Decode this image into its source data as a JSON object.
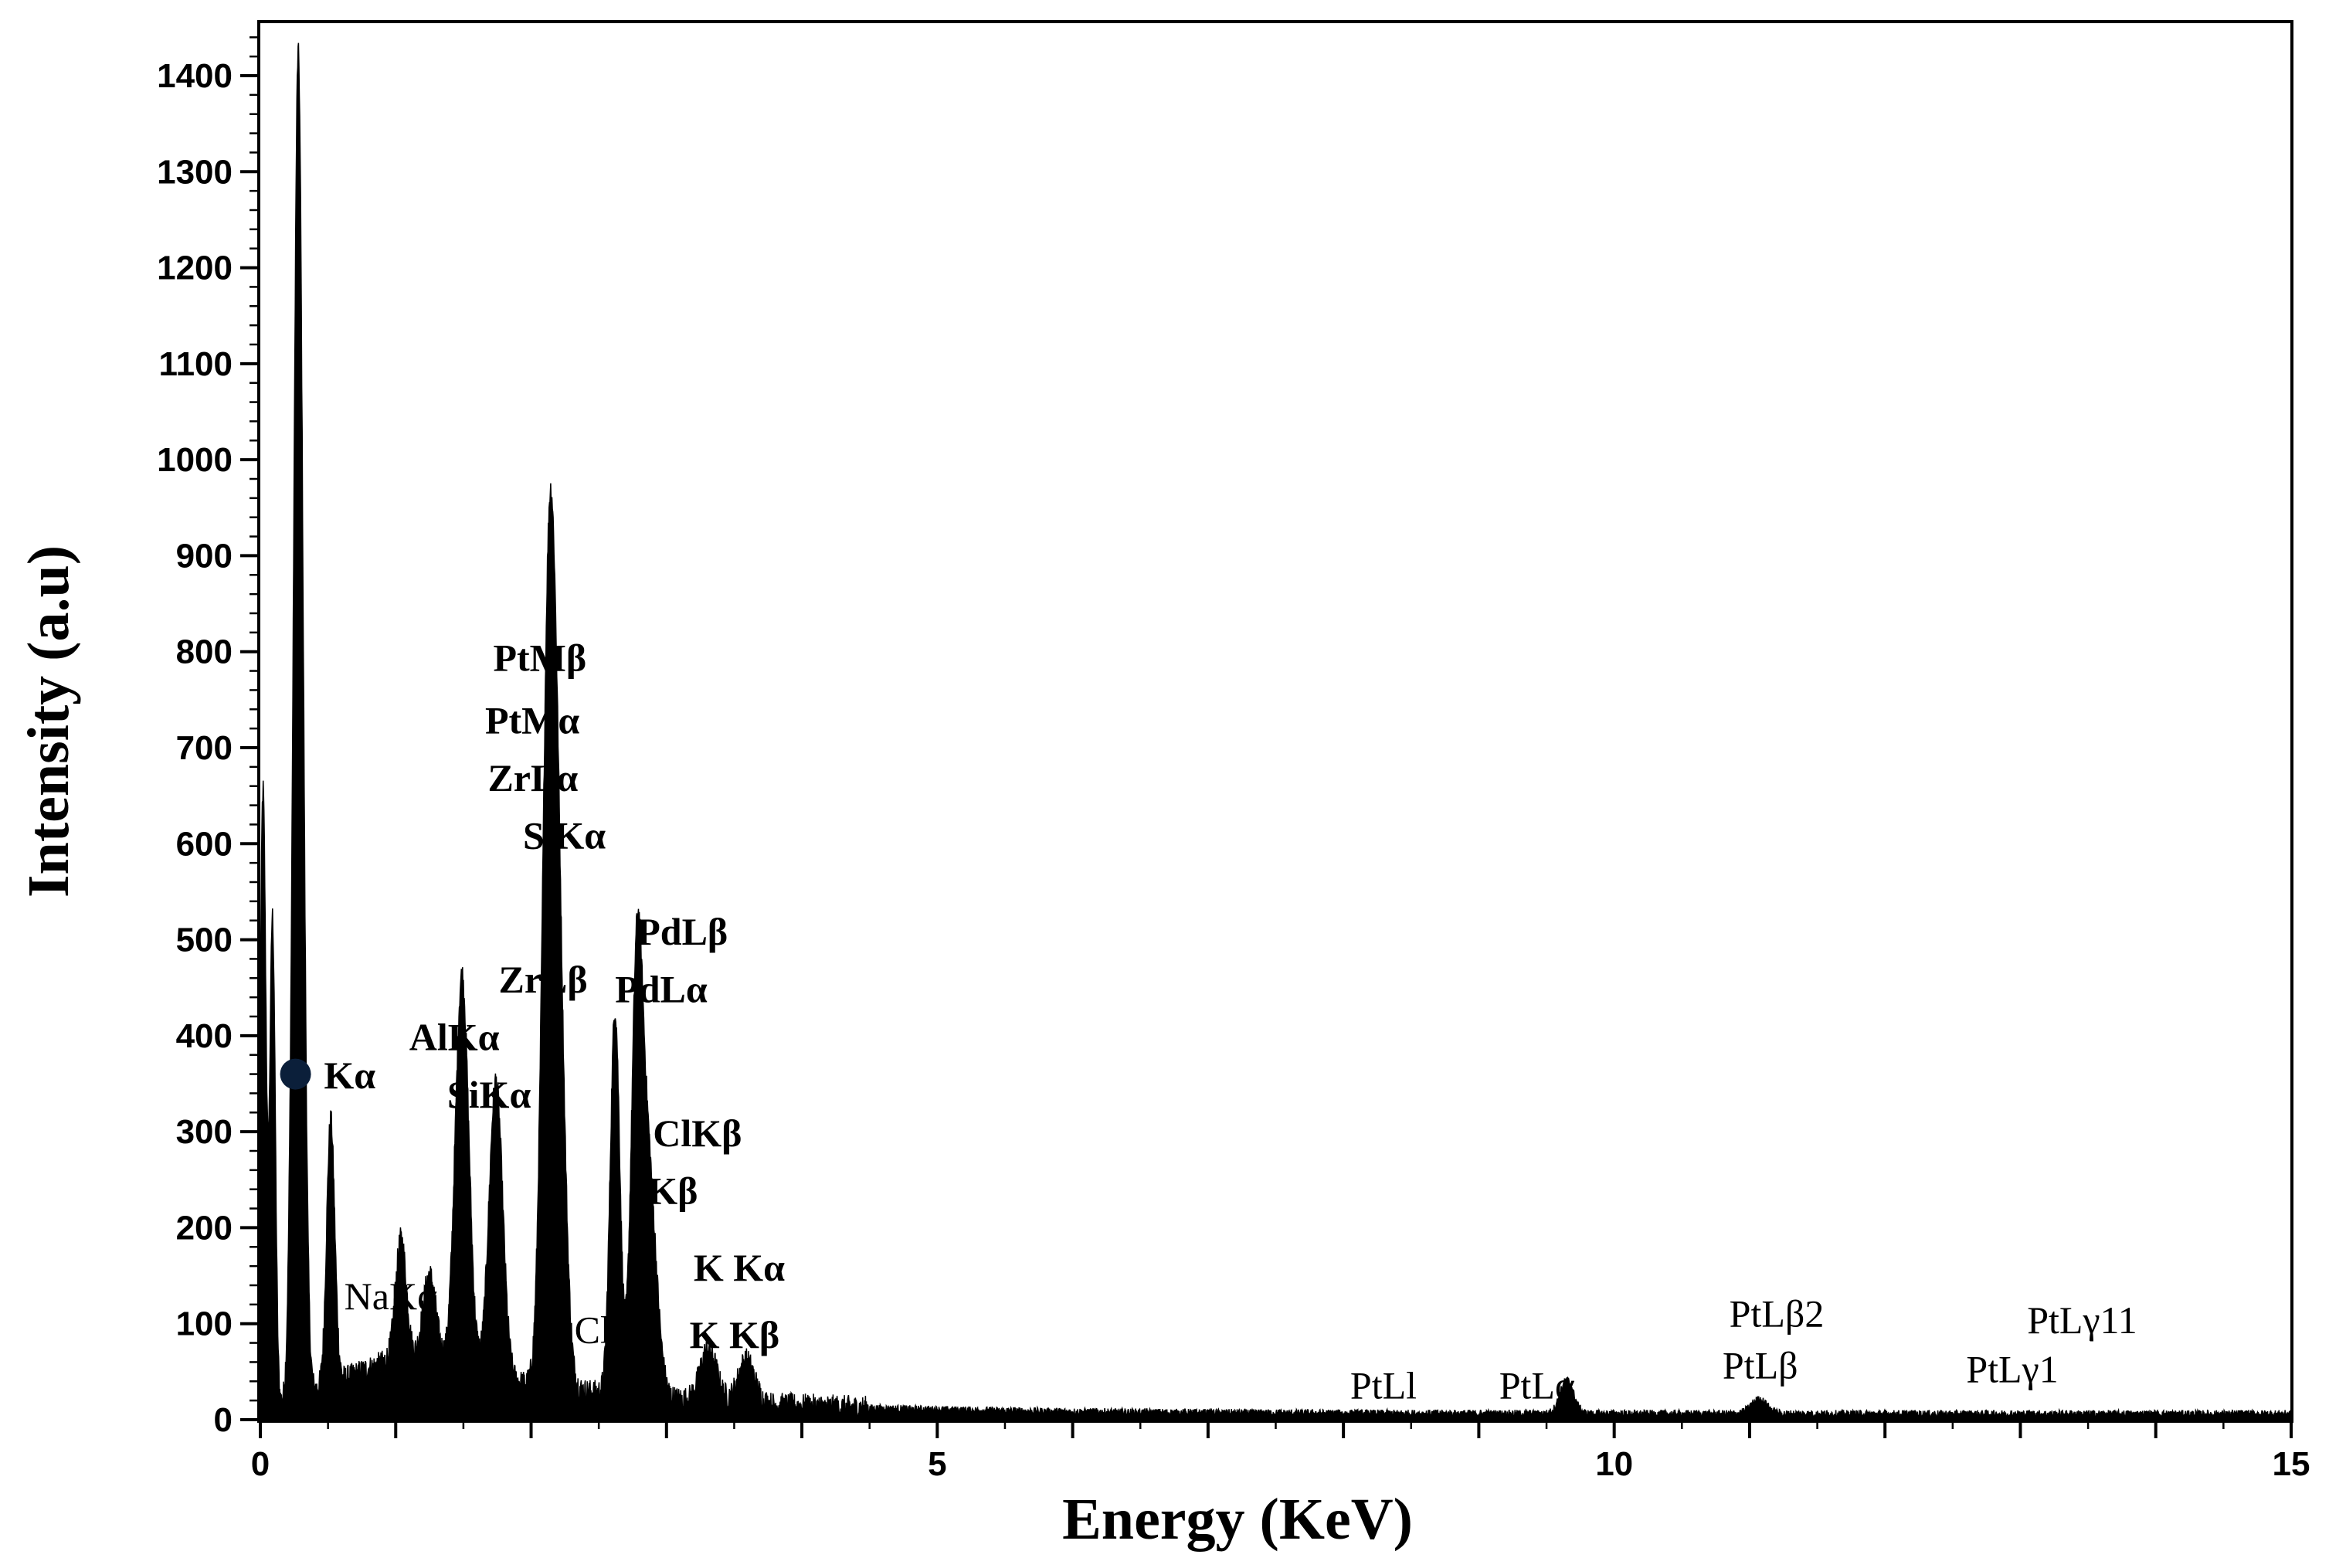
{
  "chart_data": {
    "type": "area",
    "title": "",
    "xlabel": "Energy (KeV)",
    "ylabel": "Intensity (a.u)",
    "xlim": [
      0,
      15
    ],
    "ylim": [
      0,
      1450
    ],
    "x_ticks": [
      0,
      5,
      10,
      15
    ],
    "y_ticks": [
      0,
      100,
      200,
      300,
      400,
      500,
      600,
      700,
      800,
      900,
      1000,
      1100,
      1200,
      1300,
      1400
    ],
    "grid": false,
    "legend": "none",
    "colors": {
      "fill": "#000000",
      "marker": "#0b1f3a"
    },
    "background": {
      "start": 0.1,
      "end": 15.0,
      "peak_at": 1.0,
      "peak_value": 65,
      "tail_value": 6
    },
    "peaks": [
      {
        "x": 0.02,
        "y": 655,
        "width": 0.022
      },
      {
        "x": 0.09,
        "y": 520,
        "width": 0.02
      },
      {
        "x": 0.28,
        "y": 1400,
        "width": 0.035
      },
      {
        "x": 0.52,
        "y": 275,
        "width": 0.03
      },
      {
        "x": 1.04,
        "y": 125,
        "width": 0.04
      },
      {
        "x": 1.25,
        "y": 95,
        "width": 0.05
      },
      {
        "x": 1.49,
        "y": 415,
        "width": 0.05
      },
      {
        "x": 1.74,
        "y": 310,
        "width": 0.05
      },
      {
        "x": 2.12,
        "y": 520,
        "width": 0.045
      },
      {
        "x": 2.18,
        "y": 600,
        "width": 0.055
      },
      {
        "x": 2.62,
        "y": 400,
        "width": 0.035
      },
      {
        "x": 2.78,
        "y": 390,
        "width": 0.04
      },
      {
        "x": 2.86,
        "y": 250,
        "width": 0.06
      },
      {
        "x": 3.31,
        "y": 55,
        "width": 0.06
      },
      {
        "x": 3.59,
        "y": 45,
        "width": 0.06
      },
      {
        "x": 9.65,
        "y": 35,
        "width": 0.05
      },
      {
        "x": 11.07,
        "y": 15,
        "width": 0.06
      }
    ],
    "marker": {
      "x": 0.26,
      "y": 360
    },
    "annotations": [
      {
        "text": "PtMβ",
        "x": 1.72,
        "y": 780,
        "bold": true
      },
      {
        "text": "PtMα",
        "x": 1.66,
        "y": 715,
        "bold": true
      },
      {
        "text": "ZrLα",
        "x": 1.68,
        "y": 655,
        "bold": true
      },
      {
        "text": "S Kα",
        "x": 1.94,
        "y": 595,
        "bold": true
      },
      {
        "text": "PdLβ",
        "x": 2.78,
        "y": 495,
        "bold": true
      },
      {
        "text": "ZrLβ",
        "x": 1.76,
        "y": 445,
        "bold": true
      },
      {
        "text": "PdLα",
        "x": 2.62,
        "y": 435,
        "bold": true
      },
      {
        "text": "AlKα",
        "x": 1.1,
        "y": 385,
        "bold": true
      },
      {
        "text": "Kα",
        "x": 0.47,
        "y": 345,
        "bold": true
      },
      {
        "text": "SiKα",
        "x": 1.38,
        "y": 325,
        "bold": true
      },
      {
        "text": "ClKβ",
        "x": 2.9,
        "y": 285,
        "bold": true
      },
      {
        "text": "Kβ",
        "x": 2.86,
        "y": 225,
        "bold": true
      },
      {
        "text": "K Kα",
        "x": 3.2,
        "y": 145,
        "bold": true
      },
      {
        "text": "NaKα",
        "x": 0.62,
        "y": 115,
        "bold": false
      },
      {
        "text": "Cl α",
        "x": 2.32,
        "y": 80,
        "bold": false
      },
      {
        "text": "K Kβ",
        "x": 3.17,
        "y": 75,
        "bold": true
      },
      {
        "text": "PtLβ2",
        "x": 10.85,
        "y": 97,
        "bold": false
      },
      {
        "text": "PtLγ11",
        "x": 13.05,
        "y": 90,
        "bold": false
      },
      {
        "text": "PtLβ",
        "x": 10.8,
        "y": 43,
        "bold": false
      },
      {
        "text": "PtLγ1",
        "x": 12.6,
        "y": 39,
        "bold": false
      },
      {
        "text": "PtLl",
        "x": 8.05,
        "y": 22,
        "bold": false
      },
      {
        "text": "PtLα",
        "x": 9.15,
        "y": 22,
        "bold": false
      }
    ]
  }
}
